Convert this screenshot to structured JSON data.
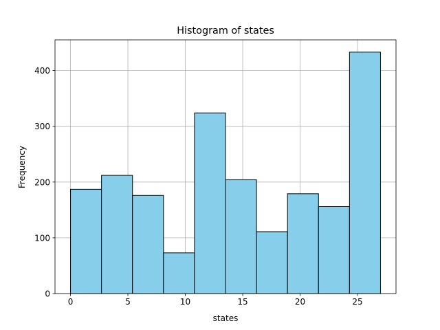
{
  "chart_data": {
    "type": "bar",
    "title": "Histogram of states",
    "xlabel": "states",
    "ylabel": "Frequency",
    "bin_edges": [
      0,
      2.7,
      5.4,
      8.1,
      10.8,
      13.5,
      16.2,
      18.9,
      21.6,
      24.3,
      27
    ],
    "values": [
      187,
      212,
      176,
      73,
      324,
      204,
      111,
      179,
      156,
      433
    ],
    "xlim": [
      -1.35,
      28.35
    ],
    "ylim": [
      0,
      455
    ],
    "x_ticks": [
      0,
      5,
      10,
      15,
      20,
      25
    ],
    "y_ticks": [
      0,
      100,
      200,
      300,
      400
    ],
    "grid": true,
    "colors": {
      "bar_fill": "#87ceeb",
      "bar_edge": "#000000",
      "grid": "#b0b0b0",
      "axes": "#000000"
    }
  }
}
